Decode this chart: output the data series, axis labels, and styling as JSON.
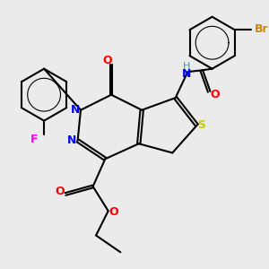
{
  "background_color": "#ebebeb",
  "atom_colors": {
    "N": "#0000ff",
    "O": "#ff0000",
    "S": "#cccc00",
    "F": "#ff00ff",
    "Br": "#cc8800",
    "H": "#4a9090",
    "C": "#000000"
  },
  "bond_color": "#000000",
  "bond_width": 1.5
}
